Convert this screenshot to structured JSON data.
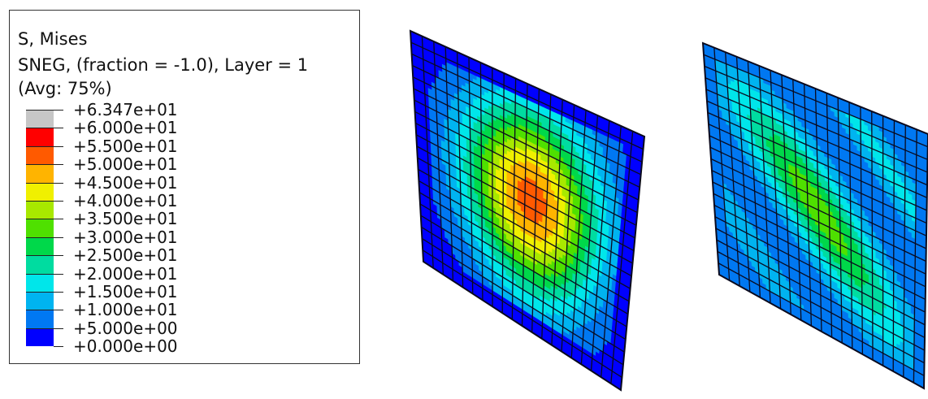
{
  "legend": {
    "title_lines": [
      "S, Mises",
      "SNEG, (fraction = -1.0), Layer = 1",
      "(Avg: 75%)"
    ],
    "levels": [
      "+6.347e+01",
      "+6.000e+01",
      "+5.500e+01",
      "+5.000e+01",
      "+4.500e+01",
      "+4.000e+01",
      "+3.500e+01",
      "+3.000e+01",
      "+2.500e+01",
      "+2.000e+01",
      "+1.500e+01",
      "+1.000e+01",
      "+5.000e+00",
      "+0.000e+00"
    ],
    "band_colors": [
      "#c6c6c6",
      "#ff0000",
      "#ff5a00",
      "#ffb400",
      "#f0f000",
      "#a8e800",
      "#4fe000",
      "#00d84a",
      "#00dca0",
      "#00e6ea",
      "#00b4f0",
      "#0078f2",
      "#0000ff"
    ]
  },
  "plots": [
    {
      "label": "plate-left",
      "pattern": "central-peak"
    },
    {
      "label": "plate-right",
      "pattern": "diagonal-band"
    }
  ]
}
